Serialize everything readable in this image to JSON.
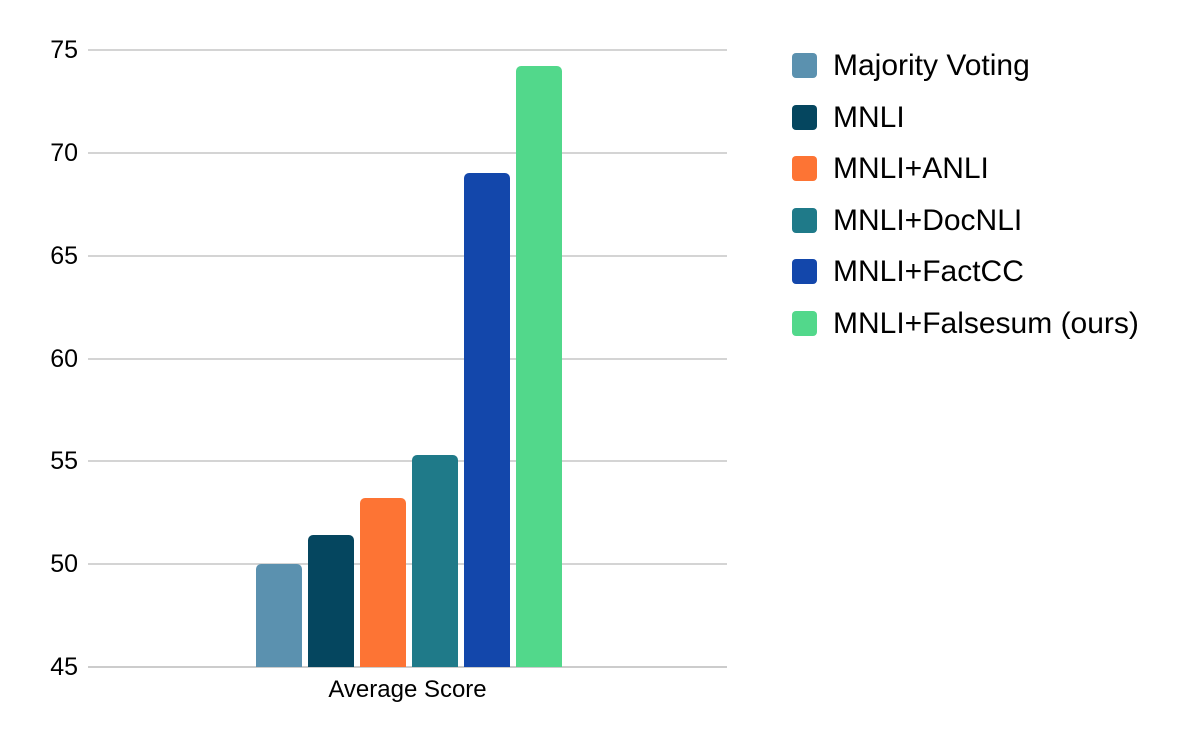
{
  "chart_data": {
    "type": "bar",
    "title": "",
    "xlabel": "Average Score",
    "ylabel": "",
    "ylim": [
      45,
      75
    ],
    "yticks": [
      45,
      50,
      55,
      60,
      65,
      70,
      75
    ],
    "grid": true,
    "legend_position": "right",
    "categories": [
      "Average Score"
    ],
    "series": [
      {
        "name": "Majority Voting",
        "values": [
          50.0
        ],
        "color": "#5b91af"
      },
      {
        "name": "MNLI",
        "values": [
          51.4
        ],
        "color": "#05465f"
      },
      {
        "name": "MNLI+ANLI",
        "values": [
          53.2
        ],
        "color": "#fd7434"
      },
      {
        "name": "MNLI+DocNLI",
        "values": [
          55.3
        ],
        "color": "#1f7a89"
      },
      {
        "name": "MNLI+FactCC",
        "values": [
          69.0
        ],
        "color": "#1347ab"
      },
      {
        "name": "MNLI+Falsesum (ours)",
        "values": [
          74.2
        ],
        "color": "#52d88b"
      }
    ]
  },
  "style": {
    "background": "#ffffff",
    "gridline_color": "#d4d4d4",
    "axis_color": "#cccccc",
    "text_color": "#000000"
  }
}
